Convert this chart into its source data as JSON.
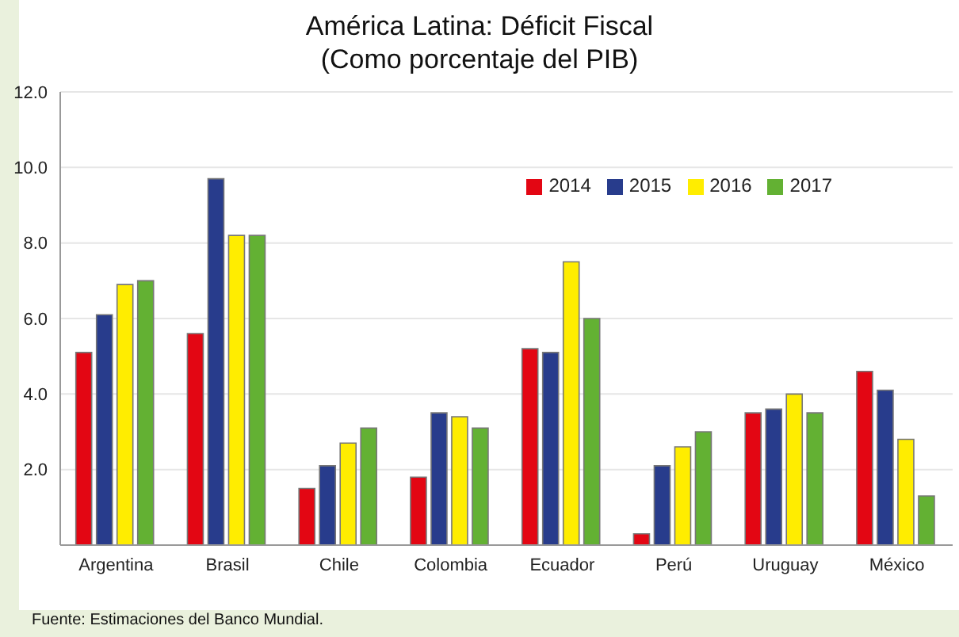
{
  "chart_data": {
    "type": "bar",
    "title": "América Latina: Déficit Fiscal",
    "subtitle": "(Como porcentaje del PIB)",
    "categories": [
      "Argentina",
      "Brasil",
      "Chile",
      "Colombia",
      "Ecuador",
      "Perú",
      "Uruguay",
      "México"
    ],
    "series": [
      {
        "name": "2014",
        "color": "#e30613",
        "values": [
          5.1,
          5.6,
          1.5,
          1.8,
          5.2,
          0.3,
          3.5,
          4.6
        ]
      },
      {
        "name": "2015",
        "color": "#283c8c",
        "values": [
          6.1,
          9.7,
          2.1,
          3.5,
          5.1,
          2.1,
          3.6,
          4.1
        ]
      },
      {
        "name": "2016",
        "color": "#ffed00",
        "values": [
          6.9,
          8.2,
          2.7,
          3.4,
          7.5,
          2.6,
          4.0,
          2.8
        ]
      },
      {
        "name": "2017",
        "color": "#63b133",
        "values": [
          7.0,
          8.2,
          3.1,
          3.1,
          6.0,
          3.0,
          3.5,
          1.3
        ]
      }
    ],
    "ylim": [
      0,
      12
    ],
    "yticks": [
      {
        "value": 2,
        "label": "2.0"
      },
      {
        "value": 4,
        "label": "4.0"
      },
      {
        "value": 6,
        "label": "6.0"
      },
      {
        "value": 8,
        "label": "8.0"
      },
      {
        "value": 10,
        "label": "10.0"
      },
      {
        "value": 12,
        "label": "12.0"
      }
    ],
    "grid": "y",
    "legend": "top right",
    "annotations": [
      "Fuente: Estimaciones del Banco Mundial."
    ]
  }
}
